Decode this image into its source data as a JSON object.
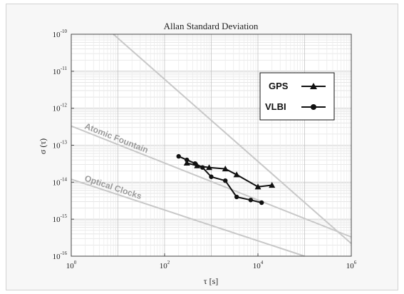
{
  "chart_data": {
    "type": "line",
    "title": "Allan Standard Deviation",
    "xlabel": "τ [s]",
    "ylabel": "σ (τ)",
    "x_scale": "log",
    "y_scale": "log",
    "xlim": [
      1,
      1000000
    ],
    "ylim": [
      1e-16,
      1e-10
    ],
    "x_ticks": [
      {
        "base": "10",
        "exp": "0",
        "value": 1
      },
      {
        "base": "10",
        "exp": "2",
        "value": 100
      },
      {
        "base": "10",
        "exp": "4",
        "value": 10000
      },
      {
        "base": "10",
        "exp": "6",
        "value": 1000000
      }
    ],
    "y_ticks": [
      {
        "base": "10",
        "exp": "-10",
        "value": 1e-10
      },
      {
        "base": "10",
        "exp": "-11",
        "value": 1e-11
      },
      {
        "base": "10",
        "exp": "-12",
        "value": 1e-12
      },
      {
        "base": "10",
        "exp": "-13",
        "value": 1e-13
      },
      {
        "base": "10",
        "exp": "-14",
        "value": 1e-14
      },
      {
        "base": "10",
        "exp": "-15",
        "value": 1e-15
      },
      {
        "base": "10",
        "exp": "-16",
        "value": 1e-16
      }
    ],
    "grid": true,
    "legend_position": "top-right",
    "series": [
      {
        "name": "GPS",
        "marker": "triangle",
        "color": "#111111",
        "x": [
          300,
          500,
          900,
          2000,
          3500,
          10000,
          20000
        ],
        "y": [
          3.3e-14,
          2.8e-14,
          2.5e-14,
          2.3e-14,
          1.6e-14,
          7.5e-15,
          8.3e-15
        ]
      },
      {
        "name": "VLBI",
        "marker": "circle",
        "color": "#111111",
        "x": [
          200,
          300,
          450,
          650,
          1000,
          2000,
          3500,
          7000,
          12000
        ],
        "y": [
          5e-14,
          4e-14,
          3.2e-14,
          2.5e-14,
          1.4e-14,
          1.1e-14,
          4e-15,
          3.3e-15,
          2.8e-15
        ]
      }
    ],
    "reference_lines": [
      {
        "label": "",
        "color": "#c8c8c8",
        "x": [
          8,
          1000000
        ],
        "y": [
          1e-10,
          2.2e-16
        ]
      },
      {
        "label": "Atomic Fountain",
        "color": "#c8c8c8",
        "x": [
          1,
          1000000
        ],
        "y": [
          3.3e-13,
          3.3e-16
        ]
      },
      {
        "label": "Optical Clocks",
        "color": "#c8c8c8",
        "x": [
          1,
          100000
        ],
        "y": [
          1.2e-14,
          1e-16
        ]
      }
    ]
  }
}
